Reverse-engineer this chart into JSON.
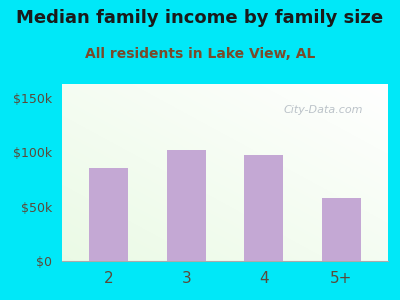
{
  "title": "Median family income by family size",
  "subtitle": "All residents in Lake View, AL",
  "categories": [
    "2",
    "3",
    "4",
    "5+"
  ],
  "values": [
    85000,
    102000,
    97000,
    58000
  ],
  "bar_color": "#c4a8d4",
  "title_fontsize": 13,
  "subtitle_fontsize": 10,
  "title_color": "#1a1a1a",
  "subtitle_color": "#7a4a2a",
  "tick_label_color": "#5a4a3a",
  "background_outer": "#00e8f8",
  "ylim": [
    0,
    162500
  ],
  "yticks": [
    0,
    50000,
    100000,
    150000
  ],
  "ytick_labels": [
    "$0",
    "$50k",
    "$100k",
    "$150k"
  ],
  "watermark": "City-Data.com"
}
